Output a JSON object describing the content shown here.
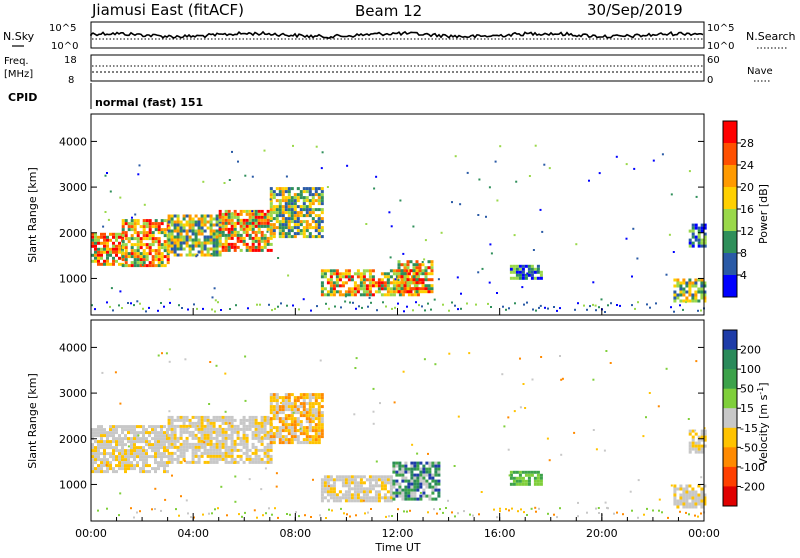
{
  "header": {
    "station": "Jiamusi East (fitACF)",
    "beam": "Beam 12",
    "date": "30/Sep/2019"
  },
  "summary_panel": {
    "nsky_label": "N.Sky",
    "nsearch_label": "N.Search",
    "noise_ticks": [
      "10^5",
      "10^0"
    ],
    "freq_label": "Freq.",
    "freq_unit": "[MHz]",
    "freq_ticks": [
      "18",
      "8"
    ],
    "nave_label": "Nave",
    "nave_ticks": [
      "60",
      "0"
    ],
    "cpid_label": "CPID",
    "cpid_value": "normal (fast) 151"
  },
  "colorbars": {
    "power": {
      "label": "Power [dB]",
      "ticks": [
        "28",
        "24",
        "20",
        "16",
        "12",
        "8",
        "4"
      ],
      "colors": [
        "#ff0000",
        "#ff5000",
        "#ff9a00",
        "#ffd000",
        "#9ad84a",
        "#2f8f5a",
        "#2a5aa6",
        "#0000ff"
      ]
    },
    "velocity": {
      "label_text": "Velocity [m s",
      "label_sup": "-1",
      "label_end": "]",
      "ticks": [
        "200",
        "100",
        "50",
        "15",
        "-15",
        "-50",
        "-100",
        "-200"
      ],
      "colors": [
        "#1e3ca8",
        "#2a8a5a",
        "#3ca24a",
        "#7fcf3a",
        "#c8c8c8",
        "#ffc300",
        "#ff8a00",
        "#ff4000",
        "#e00000"
      ]
    }
  },
  "chart_data": [
    {
      "type": "heatmap",
      "name": "power",
      "ylabel": "Slant Range [km]",
      "xlabel": "",
      "ylim": [
        200,
        4600
      ],
      "yticks": [
        "4000",
        "3000",
        "2000",
        "1000"
      ],
      "xlim_hours": [
        0,
        24
      ],
      "patches": [
        {
          "t0": 0.0,
          "t1": 1.2,
          "r0": 1300,
          "r1": 2000,
          "level": "high"
        },
        {
          "t0": 1.2,
          "t1": 3.0,
          "r0": 1300,
          "r1": 2300,
          "level": "high"
        },
        {
          "t0": 3.0,
          "t1": 5.0,
          "r0": 1500,
          "r1": 2400,
          "level": "mid"
        },
        {
          "t0": 5.0,
          "t1": 7.0,
          "r0": 1600,
          "r1": 2500,
          "level": "high"
        },
        {
          "t0": 7.0,
          "t1": 9.0,
          "r0": 1900,
          "r1": 3000,
          "level": "mid"
        },
        {
          "t0": 9.0,
          "t1": 12.8,
          "r0": 650,
          "r1": 1200,
          "level": "high"
        },
        {
          "t0": 12.0,
          "t1": 13.4,
          "r0": 700,
          "r1": 1400,
          "level": "high"
        },
        {
          "t0": 16.4,
          "t1": 17.6,
          "r0": 1000,
          "r1": 1300,
          "level": "low"
        },
        {
          "t0": 22.8,
          "t1": 24.0,
          "r0": 500,
          "r1": 1000,
          "level": "mid"
        },
        {
          "t0": 23.4,
          "t1": 24.0,
          "r0": 1700,
          "r1": 2200,
          "level": "low"
        }
      ]
    },
    {
      "type": "heatmap",
      "name": "velocity",
      "ylabel": "Slant Range [km]",
      "xlabel": "Time UT",
      "ylim": [
        200,
        4600
      ],
      "yticks": [
        "4000",
        "3000",
        "2000",
        "1000"
      ],
      "xlim_hours": [
        0,
        24
      ],
      "xticks": [
        "00:00",
        "04:00",
        "08:00",
        "12:00",
        "16:00",
        "20:00",
        "00:00"
      ],
      "patches": [
        {
          "t0": 0.0,
          "t1": 3.0,
          "r0": 1300,
          "r1": 2300,
          "level": "zero"
        },
        {
          "t0": 3.0,
          "t1": 7.0,
          "r0": 1500,
          "r1": 2500,
          "level": "zero"
        },
        {
          "t0": 7.0,
          "t1": 9.0,
          "r0": 1900,
          "r1": 3000,
          "level": "neg"
        },
        {
          "t0": 9.0,
          "t1": 11.8,
          "r0": 650,
          "r1": 1200,
          "level": "zero"
        },
        {
          "t0": 11.8,
          "t1": 13.6,
          "r0": 650,
          "r1": 1500,
          "level": "pos"
        },
        {
          "t0": 16.4,
          "t1": 17.6,
          "r0": 1000,
          "r1": 1300,
          "level": "lightpos"
        },
        {
          "t0": 22.8,
          "t1": 24.0,
          "r0": 500,
          "r1": 1000,
          "level": "zero"
        },
        {
          "t0": 23.4,
          "t1": 24.0,
          "r0": 1700,
          "r1": 2200,
          "level": "zero"
        }
      ]
    }
  ]
}
